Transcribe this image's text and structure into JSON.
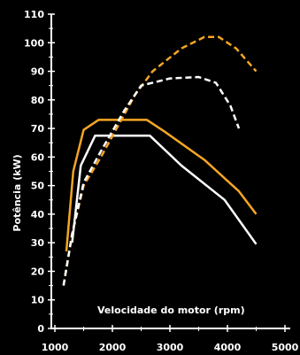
{
  "chart_data": {
    "type": "line",
    "title": "",
    "xlabel": "Velocidade do motor (rpm)",
    "ylabel": "Potência (kW)",
    "xlim": [
      1000,
      5000
    ],
    "ylim": [
      0,
      110
    ],
    "x_ticks": [
      "1000",
      "2000",
      "3000",
      "4000",
      "5000"
    ],
    "y_ticks": [
      "0",
      "10",
      "20",
      "30",
      "40",
      "50",
      "60",
      "70",
      "80",
      "90",
      "100",
      "110"
    ],
    "grid": false,
    "legend": "none",
    "background": "#000000",
    "series": [
      {
        "color": "#f5a623",
        "style": "solid",
        "points": [
          [
            1200,
            27
          ],
          [
            1320,
            55
          ],
          [
            1500,
            69.5
          ],
          [
            1760,
            73
          ],
          [
            2600,
            73
          ],
          [
            2900,
            69
          ],
          [
            3600,
            59
          ],
          [
            4200,
            48
          ],
          [
            4500,
            40
          ]
        ]
      },
      {
        "color": "#ffffff",
        "style": "solid",
        "points": [
          [
            1300,
            30
          ],
          [
            1450,
            57
          ],
          [
            1700,
            67.5
          ],
          [
            2650,
            67.5
          ],
          [
            3200,
            57
          ],
          [
            3950,
            45
          ],
          [
            4500,
            29.5
          ]
        ]
      },
      {
        "color": "#f5a623",
        "style": "dashed",
        "points": [
          [
            1150,
            15
          ],
          [
            1300,
            33
          ],
          [
            1500,
            50
          ],
          [
            1800,
            60
          ],
          [
            2400,
            82
          ],
          [
            2700,
            90
          ],
          [
            3200,
            98
          ],
          [
            3600,
            102
          ],
          [
            3850,
            102
          ],
          [
            4150,
            98
          ],
          [
            4500,
            90
          ]
        ]
      },
      {
        "color": "#ffffff",
        "style": "dashed",
        "points": [
          [
            1150,
            15
          ],
          [
            1300,
            33
          ],
          [
            1500,
            51
          ],
          [
            1800,
            62
          ],
          [
            2200,
            76
          ],
          [
            2500,
            85
          ],
          [
            3000,
            87.5
          ],
          [
            3500,
            88
          ],
          [
            3800,
            86
          ],
          [
            4050,
            78
          ],
          [
            4200,
            70
          ]
        ]
      }
    ]
  }
}
